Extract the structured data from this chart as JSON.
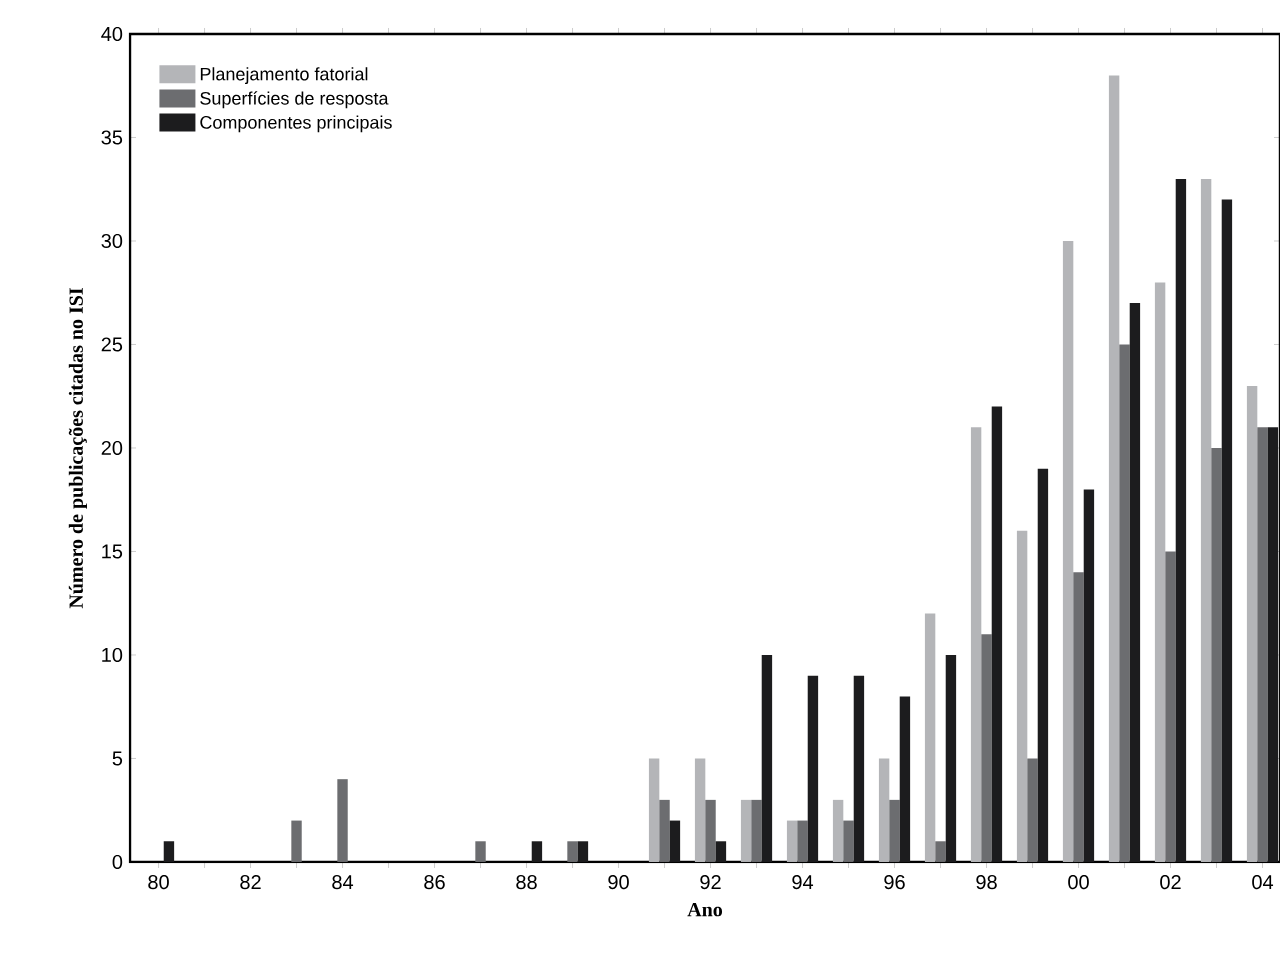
{
  "chart_data": {
    "type": "bar",
    "xlabel": "Ano",
    "ylabel": "Número de publicações citadas no ISI",
    "categories": [
      "80",
      null,
      "82",
      null,
      "84",
      null,
      "86",
      null,
      "88",
      null,
      "90",
      null,
      "92",
      null,
      "94",
      null,
      "96",
      null,
      "98",
      null,
      "00",
      null,
      "02",
      null,
      "04"
    ],
    "series": [
      {
        "name": "Planejamento fatorial",
        "color": "#b4b5b8",
        "values": [
          0,
          0,
          0,
          0,
          0,
          0,
          0,
          0,
          0,
          0,
          0,
          5,
          5,
          3,
          2,
          3,
          5,
          12,
          21,
          16,
          30,
          38,
          28,
          33,
          23
        ]
      },
      {
        "name": "Superfícies de resposta",
        "color": "#6c6d70",
        "values": [
          0,
          0,
          0,
          2,
          4,
          0,
          0,
          1,
          0,
          1,
          0,
          3,
          3,
          3,
          2,
          2,
          3,
          1,
          11,
          5,
          14,
          25,
          15,
          20,
          21
        ]
      },
      {
        "name": "Componentes principais",
        "color": "#1c1c1e",
        "values": [
          1,
          0,
          0,
          0,
          0,
          0,
          0,
          0,
          1,
          1,
          0,
          2,
          1,
          10,
          9,
          9,
          8,
          10,
          22,
          19,
          18,
          27,
          33,
          32,
          21
        ]
      }
    ],
    "ylim": [
      0,
      40
    ],
    "yticks": [
      0,
      5,
      10,
      15,
      20,
      25,
      30,
      35,
      40
    ],
    "grid": false,
    "legend": "top left"
  }
}
